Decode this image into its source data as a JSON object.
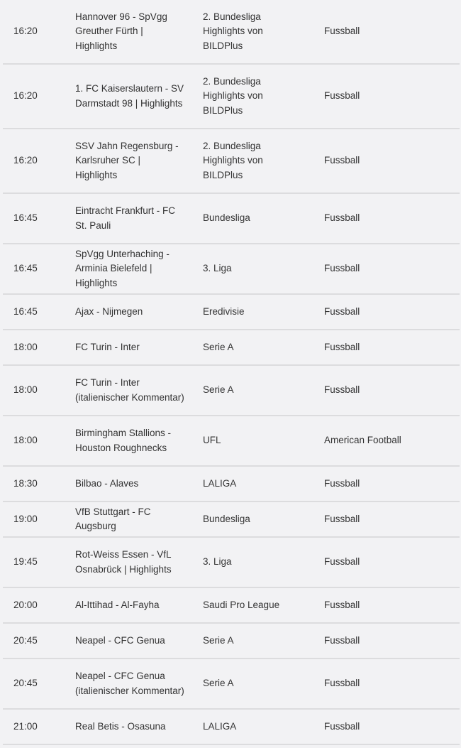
{
  "rows": [
    {
      "time": "16:20",
      "event": "Hannover 96 - SpVgg Greuther Fürth | Highlights",
      "competition": "2. Bundesliga Highlights von BILDPlus",
      "sport": "Fussball",
      "lines": 3
    },
    {
      "time": "16:20",
      "event": "1. FC Kaiserslautern - SV Darmstadt 98 | Highlights",
      "competition": "2. Bundesliga Highlights von BILDPlus",
      "sport": "Fussball",
      "lines": 3
    },
    {
      "time": "16:20",
      "event": "SSV Jahn Regensburg - Karlsruher SC | Highlights",
      "competition": "2. Bundesliga Highlights von BILDPlus",
      "sport": "Fussball",
      "lines": 3
    },
    {
      "time": "16:45",
      "event": "Eintracht Frankfurt - FC St. Pauli",
      "competition": "Bundesliga",
      "sport": "Fussball",
      "lines": 2
    },
    {
      "time": "16:45",
      "event": "SpVgg Unterhaching - Arminia Bielefeld | Highlights",
      "competition": "3. Liga",
      "sport": "Fussball",
      "lines": 2
    },
    {
      "time": "16:45",
      "event": "Ajax - Nijmegen",
      "competition": "Eredivisie",
      "sport": "Fussball",
      "lines": 1
    },
    {
      "time": "18:00",
      "event": "FC Turin - Inter",
      "competition": "Serie A",
      "sport": "Fussball",
      "lines": 1
    },
    {
      "time": "18:00",
      "event": "FC Turin - Inter (italienischer Kommentar)",
      "competition": "Serie A",
      "sport": "Fussball",
      "lines": 2
    },
    {
      "time": "18:00",
      "event": "Birmingham Stallions - Houston Roughnecks",
      "competition": "UFL",
      "sport": "American Football",
      "lines": 2
    },
    {
      "time": "18:30",
      "event": "Bilbao - Alaves",
      "competition": "LALIGA",
      "sport": "Fussball",
      "lines": 1
    },
    {
      "time": "19:00",
      "event": "VfB Stuttgart - FC Augsburg",
      "competition": "Bundesliga",
      "sport": "Fussball",
      "lines": 1
    },
    {
      "time": "19:45",
      "event": "Rot-Weiss Essen - VfL Osnabrück | Highlights",
      "competition": "3. Liga",
      "sport": "Fussball",
      "lines": 2
    },
    {
      "time": "20:00",
      "event": "Al-Ittihad - Al-Fayha",
      "competition": "Saudi Pro League",
      "sport": "Fussball",
      "lines": 1
    },
    {
      "time": "20:45",
      "event": "Neapel - CFC Genua",
      "competition": "Serie A",
      "sport": "Fussball",
      "lines": 1
    },
    {
      "time": "20:45",
      "event": "Neapel - CFC Genua (italienischer Kommentar)",
      "competition": "Serie A",
      "sport": "Fussball",
      "lines": 2
    },
    {
      "time": "21:00",
      "event": "Real Betis - Osasuna",
      "competition": "LALIGA",
      "sport": "Fussball",
      "lines": 1
    }
  ]
}
